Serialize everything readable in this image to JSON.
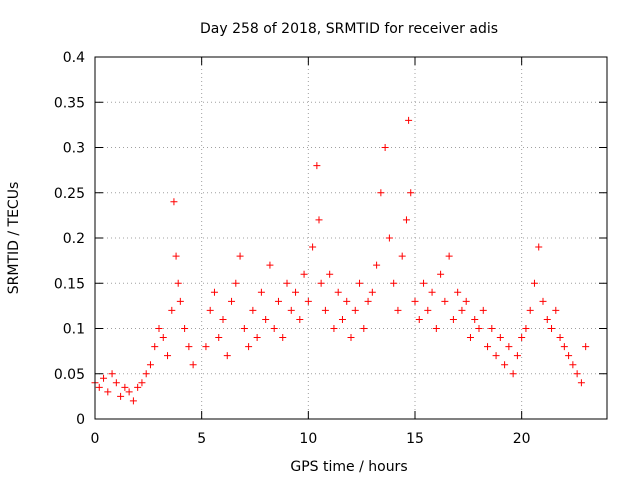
{
  "chart_data": {
    "type": "scatter",
    "title": "Day 258 of 2018, SRMTID for receiver adis",
    "xlabel": "GPS time / hours",
    "ylabel": "SRMTID / TECUs",
    "xlim": [
      0,
      24
    ],
    "ylim": [
      0,
      0.4
    ],
    "x_ticks": [
      0,
      5,
      10,
      15,
      20
    ],
    "y_ticks": [
      0,
      0.05,
      0.1,
      0.15,
      0.2,
      0.25,
      0.3,
      0.35,
      0.4
    ],
    "x_tick_labels": [
      "0",
      "5",
      "10",
      "15",
      "20"
    ],
    "y_tick_labels": [
      "0",
      "0.05",
      "0.1",
      "0.15",
      "0.2",
      "0.25",
      "0.3",
      "0.35",
      "0.4"
    ],
    "grid": true,
    "marker": "+",
    "color": "#ff0000",
    "series": [
      {
        "name": "SRMTID",
        "x": [
          0.0,
          0.2,
          0.4,
          0.6,
          0.8,
          1.0,
          1.2,
          1.4,
          1.6,
          1.8,
          2.0,
          2.2,
          2.4,
          2.6,
          2.8,
          3.0,
          3.2,
          3.4,
          3.6,
          3.7,
          3.8,
          3.9,
          4.0,
          4.2,
          4.4,
          4.6,
          5.2,
          5.4,
          5.6,
          5.8,
          6.0,
          6.2,
          6.4,
          6.6,
          6.8,
          7.0,
          7.2,
          7.4,
          7.6,
          7.8,
          8.0,
          8.2,
          8.4,
          8.6,
          8.8,
          9.0,
          9.2,
          9.4,
          9.6,
          9.8,
          10.0,
          10.2,
          10.4,
          10.5,
          10.6,
          10.8,
          11.0,
          11.2,
          11.4,
          11.6,
          11.8,
          12.0,
          12.2,
          12.4,
          12.6,
          12.8,
          13.0,
          13.2,
          13.4,
          13.6,
          13.8,
          14.0,
          14.2,
          14.4,
          14.6,
          14.7,
          14.8,
          15.0,
          15.2,
          15.4,
          15.6,
          15.8,
          16.0,
          16.2,
          16.4,
          16.6,
          16.8,
          17.0,
          17.2,
          17.4,
          17.6,
          17.8,
          18.0,
          18.2,
          18.4,
          18.6,
          18.8,
          19.0,
          19.2,
          19.4,
          19.6,
          19.8,
          20.0,
          20.2,
          20.4,
          20.6,
          20.8,
          21.0,
          21.2,
          21.4,
          21.6,
          21.8,
          22.0,
          22.2,
          22.4,
          22.6,
          22.8,
          23.0
        ],
        "y": [
          0.04,
          0.035,
          0.045,
          0.03,
          0.05,
          0.04,
          0.025,
          0.035,
          0.03,
          0.02,
          0.035,
          0.04,
          0.05,
          0.06,
          0.08,
          0.1,
          0.09,
          0.07,
          0.12,
          0.24,
          0.18,
          0.15,
          0.13,
          0.1,
          0.08,
          0.06,
          0.08,
          0.12,
          0.14,
          0.09,
          0.11,
          0.07,
          0.13,
          0.15,
          0.18,
          0.1,
          0.08,
          0.12,
          0.09,
          0.14,
          0.11,
          0.17,
          0.1,
          0.13,
          0.09,
          0.15,
          0.12,
          0.14,
          0.11,
          0.16,
          0.13,
          0.19,
          0.28,
          0.22,
          0.15,
          0.12,
          0.16,
          0.1,
          0.14,
          0.11,
          0.13,
          0.09,
          0.12,
          0.15,
          0.1,
          0.13,
          0.14,
          0.17,
          0.25,
          0.3,
          0.2,
          0.15,
          0.12,
          0.18,
          0.22,
          0.33,
          0.25,
          0.13,
          0.11,
          0.15,
          0.12,
          0.14,
          0.1,
          0.16,
          0.13,
          0.18,
          0.11,
          0.14,
          0.12,
          0.13,
          0.09,
          0.11,
          0.1,
          0.12,
          0.08,
          0.1,
          0.07,
          0.09,
          0.06,
          0.08,
          0.05,
          0.07,
          0.09,
          0.1,
          0.12,
          0.15,
          0.19,
          0.13,
          0.11,
          0.1,
          0.12,
          0.09,
          0.08,
          0.07,
          0.06,
          0.05,
          0.04,
          0.08
        ]
      }
    ]
  },
  "annotations": []
}
